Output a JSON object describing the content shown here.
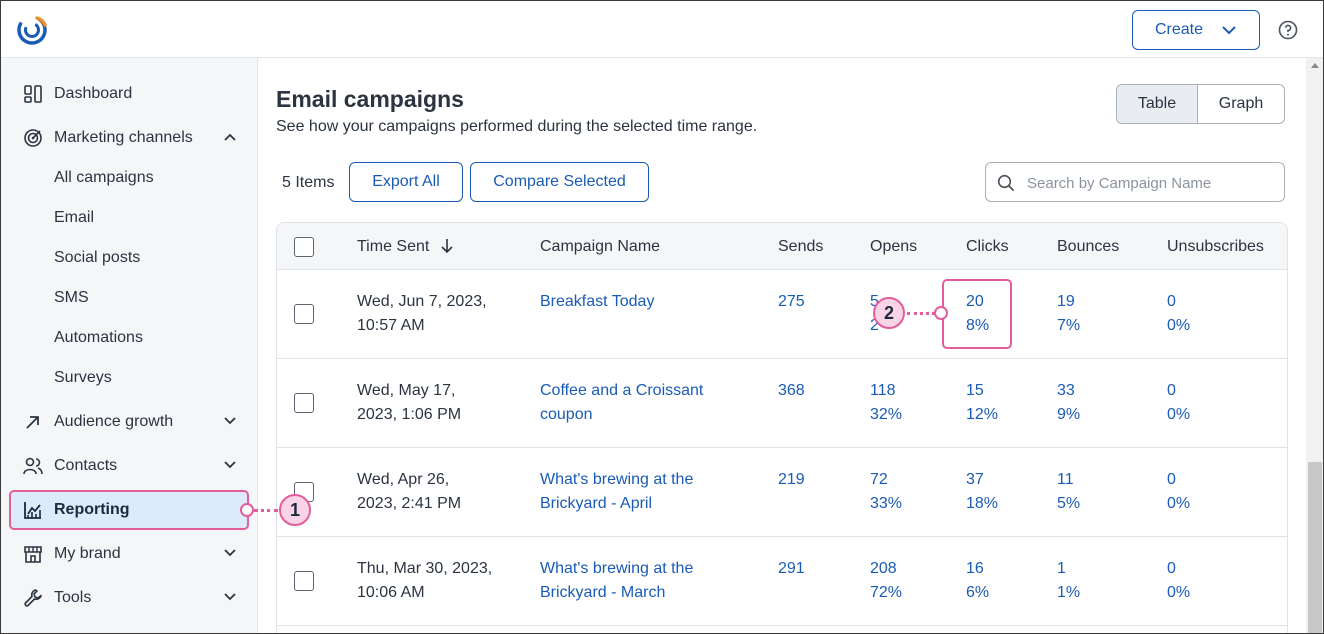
{
  "header": {
    "create_label": "Create"
  },
  "sidebar": {
    "items": [
      {
        "label": "Dashboard",
        "icon": "dashboard-icon"
      },
      {
        "label": "Marketing channels",
        "icon": "target-icon"
      },
      {
        "label": "Audience growth",
        "icon": "arrow-up-right-icon"
      },
      {
        "label": "Contacts",
        "icon": "contacts-icon"
      },
      {
        "label": "Reporting",
        "icon": "chart-icon"
      },
      {
        "label": "My brand",
        "icon": "store-icon"
      },
      {
        "label": "Tools",
        "icon": "wrench-icon"
      }
    ],
    "subitems": [
      "All campaigns",
      "Email",
      "Social posts",
      "SMS",
      "Automations",
      "Surveys"
    ]
  },
  "main": {
    "title": "Email campaigns",
    "subtitle": "See how your campaigns performed during the selected time range.",
    "view_toggle": [
      "Table",
      "Graph"
    ],
    "selected_view": "Table",
    "items_count": "5 Items",
    "export_label": "Export All",
    "compare_label": "Compare Selected",
    "search_placeholder": "Search by Campaign Name"
  },
  "table": {
    "columns": [
      "Time Sent",
      "Campaign Name",
      "Sends",
      "Opens",
      "Clicks",
      "Bounces",
      "Unsubscribes"
    ],
    "rows": [
      {
        "time": [
          "Wed, Jun 7, 2023,",
          "10:57 AM"
        ],
        "name": [
          "Breakfast Today"
        ],
        "sends": "275",
        "opens": [
          "5",
          "2"
        ],
        "clicks": [
          "20",
          "8%"
        ],
        "bounces": [
          "19",
          "7%"
        ],
        "unsubs": [
          "0",
          "0%"
        ]
      },
      {
        "time": [
          "Wed, May 17,",
          "2023, 1:06 PM"
        ],
        "name": [
          "Coffee and a Croissant",
          "coupon"
        ],
        "sends": "368",
        "opens": [
          "118",
          "32%"
        ],
        "clicks": [
          "15",
          "12%"
        ],
        "bounces": [
          "33",
          "9%"
        ],
        "unsubs": [
          "0",
          "0%"
        ]
      },
      {
        "time": [
          "Wed, Apr 26,",
          "2023, 2:41 PM"
        ],
        "name": [
          "What's brewing at the",
          "Brickyard - April"
        ],
        "sends": "219",
        "opens": [
          "72",
          "33%"
        ],
        "clicks": [
          "37",
          "18%"
        ],
        "bounces": [
          "11",
          "5%"
        ],
        "unsubs": [
          "0",
          "0%"
        ]
      },
      {
        "time": [
          "Thu, Mar 30, 2023,",
          "10:06 AM"
        ],
        "name": [
          "What's brewing at the",
          "Brickyard - March"
        ],
        "sends": "291",
        "opens": [
          "208",
          "72%"
        ],
        "clicks": [
          "16",
          "6%"
        ],
        "bounces": [
          "1",
          "1%"
        ],
        "unsubs": [
          "0",
          "0%"
        ]
      }
    ]
  },
  "callouts": [
    "1",
    "2"
  ],
  "colors": {
    "accent": "#1a5bb5",
    "highlight": "#e35d9c",
    "sidebar_bg": "#f5f6f8",
    "active_bg": "#ddeafa"
  }
}
